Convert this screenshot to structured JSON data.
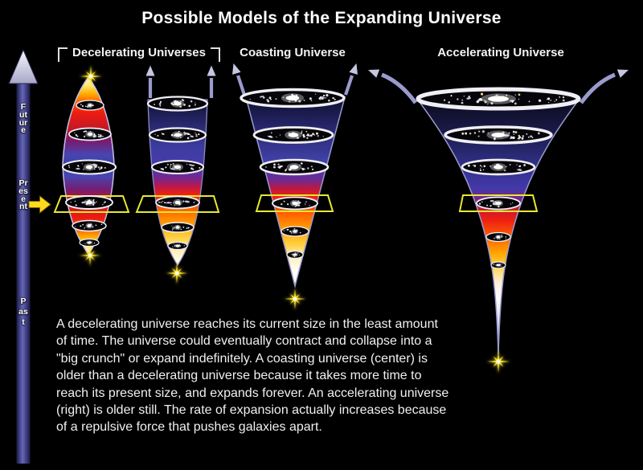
{
  "title": "Possible Models of the Expanding Universe",
  "sections": {
    "decelerating": {
      "label": "Decelerating Universes"
    },
    "coasting": {
      "label": "Coasting Universe"
    },
    "accelerating": {
      "label": "Accelerating Universe"
    }
  },
  "timeline": {
    "future": "Future",
    "present": "Present",
    "past": "Past"
  },
  "description": {
    "lines": [
      "A decelerating universe reaches its current size in the least amount",
      "of time. The universe could eventually contract and collapse into a",
      "\"big crunch\" or expand indefinitely. A coasting universe (center) is",
      "older than a decelerating universe because it takes more time to",
      "reach its present size, and expands forever. An accelerating universe",
      "(right) is older still. The rate of expansion actually increases because",
      "of a repulsive force that pushes galaxies apart."
    ]
  },
  "colors": {
    "background": "#000000",
    "text": "#f0f0f0",
    "present_plane_yellow": "#e8e832",
    "starburst_yellow": "#ffe62e",
    "present_arrow_yellow": "#ffd91e",
    "time_arrow_blue": "#5c5cb0",
    "expansion_arrow_lavender": "#9a9ace"
  }
}
